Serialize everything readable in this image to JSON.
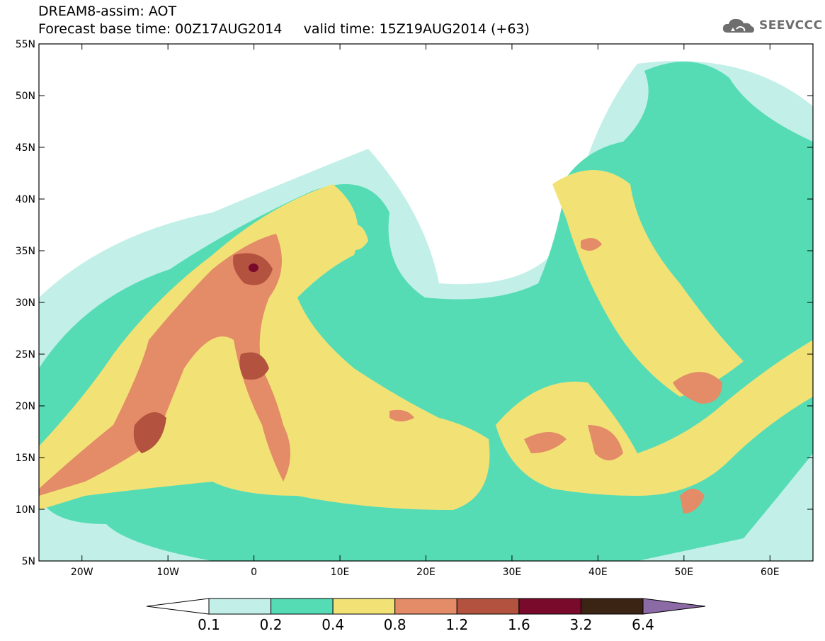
{
  "header": {
    "title_line1": "DREAM8-assim: AOT",
    "title_line2": "Forecast base time: 00Z17AUG2014     valid time: 15Z19AUG2014 (+63)"
  },
  "logo": {
    "text": "SEEVCCC",
    "icon": "cloud-icon"
  },
  "map": {
    "lon_range": [
      -25,
      65
    ],
    "lat_range": [
      5,
      55
    ],
    "lat_labels": [
      "55N",
      "50N",
      "45N",
      "40N",
      "35N",
      "30N",
      "25N",
      "20N",
      "15N",
      "10N",
      "5N"
    ],
    "lon_labels": [
      "20W",
      "10W",
      "0",
      "10E",
      "20E",
      "30E",
      "40E",
      "50E",
      "60E"
    ],
    "lat_values": [
      55,
      50,
      45,
      40,
      35,
      30,
      25,
      20,
      15,
      10,
      5
    ],
    "lon_values": [
      -20,
      -10,
      0,
      10,
      20,
      30,
      40,
      50,
      60
    ]
  },
  "colorbar": {
    "colors": [
      "#ffffff",
      "#c2f0e8",
      "#55dcb5",
      "#f2e276",
      "#e48b68",
      "#b3523f",
      "#7a0a2c",
      "#3b2414",
      "#8c6aa6"
    ],
    "labels": [
      "0.1",
      "0.2",
      "0.4",
      "0.8",
      "1.2",
      "1.6",
      "3.2",
      "6.4"
    ]
  }
}
